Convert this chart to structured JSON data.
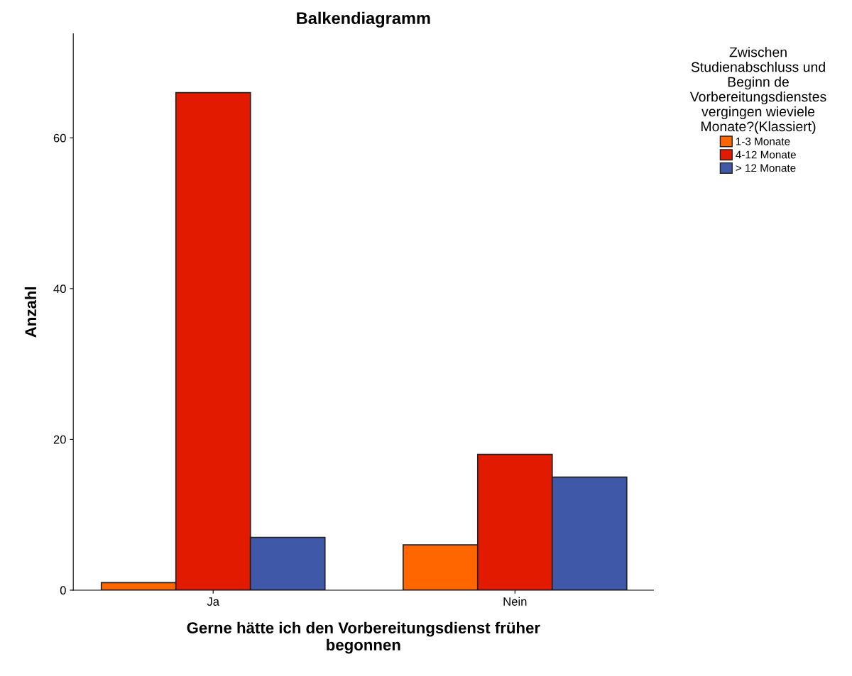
{
  "chart_data": {
    "type": "bar",
    "title": "Balkendiagramm",
    "xlabel": "Gerne hätte ich den Vorbereitungsdienst früher\nbegonnen",
    "ylabel": "Anzahl",
    "legend_title": "Zwischen\nStudienabschluss und\nBeginn de\nVorbereitungsdienstes\nvergingen wieviele\nMonate?(Klassiert)",
    "categories": [
      "Ja",
      "Nein"
    ],
    "series": [
      {
        "name": "1-3 Monate",
        "color": "#ff6600",
        "values": [
          1,
          6
        ]
      },
      {
        "name": "4-12 Monate",
        "color": "#e11a00",
        "values": [
          66,
          18
        ]
      },
      {
        "name": "> 12 Monate",
        "color": "#3f58a8",
        "values": [
          7,
          15
        ]
      }
    ],
    "ylim": [
      0,
      73.8
    ],
    "yticks": [
      0,
      20,
      40,
      60
    ],
    "grid": false,
    "legend": "top right"
  }
}
